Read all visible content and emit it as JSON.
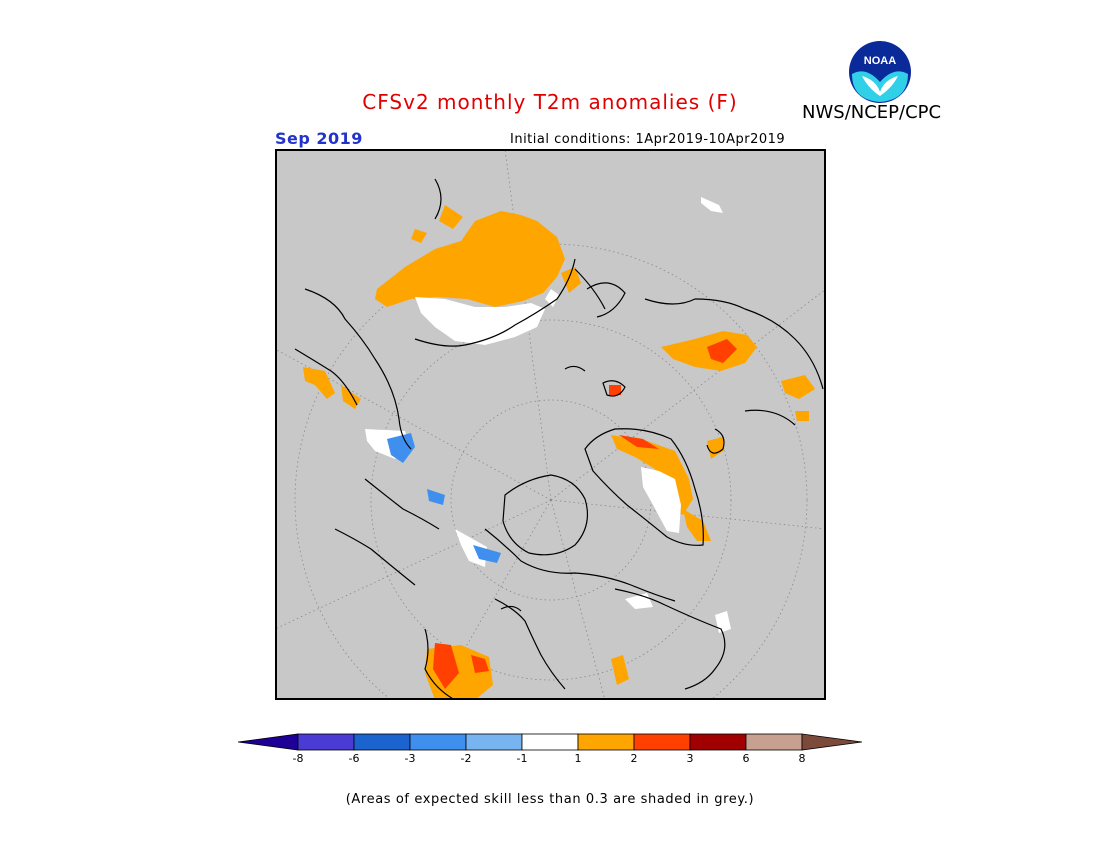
{
  "header": {
    "title": "CFSv2 monthly T2m anomalies (F)",
    "agency": "NWS/NCEP/CPC",
    "logo_text": "NOAA",
    "valid_month": "Sep 2019",
    "initial_conditions": "Initial conditions: 1Apr2019-10Apr2019"
  },
  "colors": {
    "grey_low_skill": "#c8c8c8",
    "anomaly_orange": "#ffa500",
    "anomaly_red_orange": "#ff4000",
    "anomaly_white": "#ffffff",
    "anomaly_blue": "#3f8fee",
    "title_red": "#e00000",
    "month_blue": "#2233cc"
  },
  "legend": {
    "bins": [
      {
        "color": "#1e0096"
      },
      {
        "color": "#4a3bd4"
      },
      {
        "color": "#1b64d0"
      },
      {
        "color": "#3f8fee"
      },
      {
        "color": "#78b4f0"
      },
      {
        "color": "#ffffff"
      },
      {
        "color": "#ffa500"
      },
      {
        "color": "#ff4000"
      },
      {
        "color": "#a00000"
      },
      {
        "color": "#c8a090"
      },
      {
        "color": "#7c4a3a"
      }
    ],
    "ticks": [
      "-8",
      "-6",
      "-3",
      "-2",
      "-1",
      "1",
      "2",
      "3",
      "6",
      "8"
    ]
  },
  "footer": {
    "note": "(Areas of expected skill less than 0.3 are shaded in grey.)"
  }
}
